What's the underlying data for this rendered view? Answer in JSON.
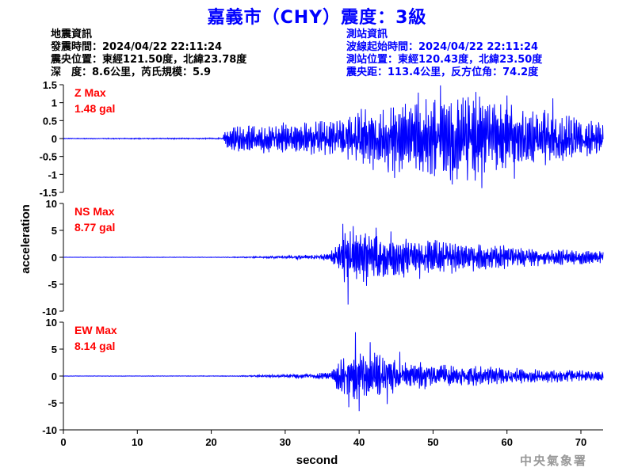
{
  "title": "嘉義市（CHY）震度：3級",
  "quake_info": {
    "heading": "地震資訊",
    "time": "發震時間：2024/04/22 22:11:24",
    "epicenter": "震央位置：東經121.50度，北緯23.78度",
    "depth_magnitude": "深　度：8.6公里，芮氏規模：5.9"
  },
  "station_info": {
    "heading": "測站資訊",
    "wave_start": "波線起始時間：2024/04/22 22:11:24",
    "location": "測站位置：東經120.43度，北緯23.50度",
    "distance": "震央距：113.4公里，反方位角：74.2度"
  },
  "footer": {
    "credit": "中央氣象署"
  },
  "colors": {
    "title": "#0000ff",
    "trace": "#0000ff",
    "max_label": "#ff0000",
    "station_text": "#0000ff",
    "footer": "#999999"
  },
  "chart_data": [
    {
      "type": "line",
      "name": "Z",
      "max_label": "Z Max",
      "max_value": "1.48 gal",
      "ylim": [
        -1.5,
        1.5
      ],
      "yticks": [
        -1.5,
        -1,
        -0.5,
        0,
        0.5,
        1,
        1.5
      ],
      "ytick_labels": [
        "-1.5",
        "-1",
        "-0.5",
        "0",
        "0.5",
        "1",
        "1.5"
      ],
      "xlim": [
        0,
        73
      ],
      "envelope": [
        {
          "t": 0,
          "a": 0.01
        },
        {
          "t": 21.5,
          "a": 0.02
        },
        {
          "t": 22,
          "a": 0.25
        },
        {
          "t": 23,
          "a": 0.4
        },
        {
          "t": 30,
          "a": 0.45
        },
        {
          "t": 37,
          "a": 0.5
        },
        {
          "t": 40,
          "a": 0.85
        },
        {
          "t": 46,
          "a": 1.05
        },
        {
          "t": 50,
          "a": 1.2
        },
        {
          "t": 56,
          "a": 1.3
        },
        {
          "t": 62,
          "a": 1.0
        },
        {
          "t": 68,
          "a": 0.7
        },
        {
          "t": 73,
          "a": 0.45
        }
      ],
      "peaks": [
        {
          "t": 51.0,
          "v": 1.48
        },
        {
          "t": 55.8,
          "v": 1.3
        },
        {
          "t": 56.6,
          "v": -1.38
        },
        {
          "t": 52.6,
          "v": -1.28
        },
        {
          "t": 48.0,
          "v": 1.28
        },
        {
          "t": 44.8,
          "v": -1.1
        },
        {
          "t": 60.0,
          "v": 1.2
        },
        {
          "t": 66.2,
          "v": 1.12
        },
        {
          "t": 61.0,
          "v": -1.12
        }
      ]
    },
    {
      "type": "line",
      "name": "NS",
      "max_label": "NS Max",
      "max_value": "8.77 gal",
      "ylim": [
        -10,
        10
      ],
      "yticks": [
        -10,
        -5,
        0,
        5,
        10
      ],
      "ytick_labels": [
        "-10",
        "-5",
        "0",
        "5",
        "10"
      ],
      "xlim": [
        0,
        73
      ],
      "envelope": [
        {
          "t": 0,
          "a": 0.03
        },
        {
          "t": 21.5,
          "a": 0.05
        },
        {
          "t": 24,
          "a": 0.1
        },
        {
          "t": 30,
          "a": 0.3
        },
        {
          "t": 36,
          "a": 0.7
        },
        {
          "t": 37.5,
          "a": 4.0
        },
        {
          "t": 38.5,
          "a": 6.0
        },
        {
          "t": 42,
          "a": 5.0
        },
        {
          "t": 46,
          "a": 3.8
        },
        {
          "t": 52,
          "a": 3.2
        },
        {
          "t": 58,
          "a": 2.5
        },
        {
          "t": 64,
          "a": 1.7
        },
        {
          "t": 73,
          "a": 1.2
        }
      ],
      "peaks": [
        {
          "t": 38.5,
          "v": -8.77
        },
        {
          "t": 37.8,
          "v": 6.2
        },
        {
          "t": 39.2,
          "v": 5.8
        },
        {
          "t": 42.3,
          "v": 5.5
        },
        {
          "t": 41.0,
          "v": -5.3
        },
        {
          "t": 44.3,
          "v": 4.8
        },
        {
          "t": 48.2,
          "v": -4.0
        }
      ]
    },
    {
      "type": "line",
      "name": "EW",
      "max_label": "EW Max",
      "max_value": "8.14 gal",
      "ylim": [
        -10,
        10
      ],
      "yticks": [
        -10,
        -5,
        0,
        5,
        10
      ],
      "ytick_labels": [
        "-10",
        "-5",
        "0",
        "5",
        "10"
      ],
      "xlim": [
        0,
        73
      ],
      "envelope": [
        {
          "t": 0,
          "a": 0.03
        },
        {
          "t": 21.5,
          "a": 0.05
        },
        {
          "t": 24,
          "a": 0.1
        },
        {
          "t": 30,
          "a": 0.3
        },
        {
          "t": 36,
          "a": 0.7
        },
        {
          "t": 37.5,
          "a": 3.5
        },
        {
          "t": 39.5,
          "a": 5.5
        },
        {
          "t": 42,
          "a": 4.5
        },
        {
          "t": 46,
          "a": 3.0
        },
        {
          "t": 52,
          "a": 2.2
        },
        {
          "t": 58,
          "a": 1.8
        },
        {
          "t": 64,
          "a": 1.3
        },
        {
          "t": 73,
          "a": 1.0
        }
      ],
      "peaks": [
        {
          "t": 39.5,
          "v": 8.14
        },
        {
          "t": 40.0,
          "v": -6.5
        },
        {
          "t": 41.5,
          "v": 6.3
        },
        {
          "t": 43.8,
          "v": -5.2
        },
        {
          "t": 38.6,
          "v": -5.8
        },
        {
          "t": 45.5,
          "v": 4.5
        }
      ]
    }
  ],
  "axes": {
    "xlabel": "second",
    "ylabel": "acceleration",
    "xticks": [
      0,
      10,
      20,
      30,
      40,
      50,
      60,
      70
    ],
    "xtick_labels": [
      "0",
      "10",
      "20",
      "30",
      "40",
      "50",
      "60",
      "70"
    ]
  }
}
